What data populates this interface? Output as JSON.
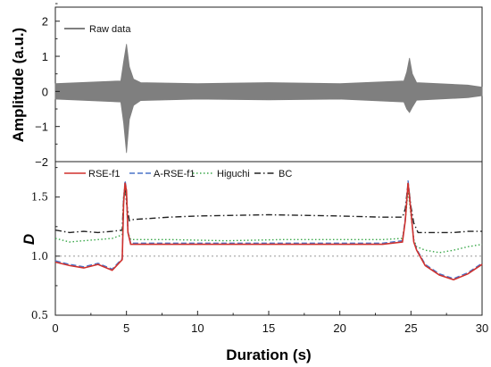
{
  "chart_data": [
    {
      "type": "line",
      "title": "",
      "xlabel": "",
      "ylabel": "Amplitude (a.u.)",
      "xlim": [
        0,
        30
      ],
      "ylim": [
        -2,
        2.4
      ],
      "yticks": [
        "−2",
        "−1",
        "0",
        "1",
        "2"
      ],
      "ytick_values": [
        -2,
        -1,
        0,
        1,
        2
      ],
      "grid": false,
      "legend_position": "top-left",
      "series": [
        {
          "name": "Raw data",
          "color": "#7f7f7f",
          "envelope": {
            "x": [
              0,
              4.6,
              4.8,
              5.0,
              5.2,
              5.5,
              6,
              10,
              15,
              20,
              24.5,
              24.7,
              24.9,
              25.1,
              25.4,
              29,
              30
            ],
            "upper": [
              0.22,
              0.3,
              0.85,
              1.35,
              0.7,
              0.35,
              0.25,
              0.22,
              0.25,
              0.22,
              0.3,
              0.55,
              0.95,
              0.5,
              0.25,
              0.18,
              0.12
            ],
            "lower": [
              -0.22,
              -0.3,
              -0.9,
              -1.75,
              -0.8,
              -0.4,
              -0.26,
              -0.22,
              -0.24,
              -0.22,
              -0.3,
              -0.5,
              -0.6,
              -0.45,
              -0.25,
              -0.18,
              -0.12
            ]
          }
        }
      ]
    },
    {
      "type": "line",
      "title": "",
      "xlabel": "Duration (s)",
      "ylabel": "D",
      "xlim": [
        0,
        30
      ],
      "ylim": [
        0.5,
        1.8
      ],
      "xticks": [
        "0",
        "5",
        "10",
        "15",
        "20",
        "25",
        "30"
      ],
      "xtick_values": [
        0,
        5,
        10,
        15,
        20,
        25,
        30
      ],
      "yticks": [
        "0.5",
        "1.0",
        "1.5"
      ],
      "ytick_values": [
        0.5,
        1.0,
        1.5
      ],
      "reference_line": {
        "y": 1.0,
        "style": "dotted"
      },
      "grid": false,
      "legend_position": "top",
      "series": [
        {
          "name": "RSE-f1",
          "color": "#d0312d",
          "style": "solid",
          "x": [
            0,
            1,
            2,
            3,
            4,
            4.7,
            4.8,
            4.9,
            5.0,
            5.1,
            5.3,
            8,
            12,
            16,
            20,
            23,
            24.4,
            24.6,
            24.8,
            25.0,
            25.2,
            25.4,
            26,
            27,
            28,
            29,
            30
          ],
          "y": [
            0.95,
            0.92,
            0.9,
            0.93,
            0.88,
            0.97,
            1.45,
            1.62,
            1.55,
            1.2,
            1.1,
            1.1,
            1.1,
            1.1,
            1.1,
            1.1,
            1.12,
            1.3,
            1.62,
            1.38,
            1.12,
            1.05,
            0.92,
            0.84,
            0.8,
            0.85,
            0.93
          ]
        },
        {
          "name": "A-RSE-f1",
          "color": "#4a74c9",
          "style": "dashed",
          "x": [
            0,
            1,
            2,
            3,
            4,
            4.7,
            4.8,
            4.9,
            5.0,
            5.1,
            5.3,
            8,
            12,
            16,
            20,
            23,
            24.4,
            24.6,
            24.8,
            25.0,
            25.2,
            25.4,
            26,
            27,
            28,
            29,
            30
          ],
          "y": [
            0.96,
            0.93,
            0.91,
            0.94,
            0.89,
            0.98,
            1.47,
            1.64,
            1.56,
            1.21,
            1.11,
            1.11,
            1.11,
            1.11,
            1.11,
            1.11,
            1.13,
            1.32,
            1.64,
            1.39,
            1.13,
            1.06,
            0.93,
            0.85,
            0.81,
            0.86,
            0.94
          ]
        },
        {
          "name": "Higuchi",
          "color": "#3aa84a",
          "style": "dotted",
          "x": [
            0,
            1,
            2,
            3,
            4,
            4.7,
            4.8,
            4.9,
            5.0,
            5.1,
            5.3,
            8,
            12,
            16,
            20,
            23,
            24.4,
            24.6,
            24.8,
            25.0,
            25.2,
            25.4,
            26,
            27,
            28,
            29,
            30
          ],
          "y": [
            1.15,
            1.12,
            1.13,
            1.14,
            1.15,
            1.18,
            1.5,
            1.6,
            1.5,
            1.2,
            1.14,
            1.14,
            1.13,
            1.14,
            1.14,
            1.14,
            1.15,
            1.3,
            1.56,
            1.35,
            1.14,
            1.08,
            1.05,
            1.03,
            1.05,
            1.08,
            1.1
          ]
        },
        {
          "name": "BC",
          "color": "#222222",
          "style": "dashdot",
          "x": [
            0,
            1,
            2,
            3,
            4,
            4.7,
            4.8,
            4.9,
            5.0,
            5.2,
            5.5,
            8,
            10,
            15,
            20,
            23,
            24.4,
            24.6,
            24.8,
            25.0,
            25.2,
            25.5,
            26,
            27,
            28,
            29,
            30
          ],
          "y": [
            1.22,
            1.2,
            1.21,
            1.2,
            1.21,
            1.22,
            1.5,
            1.6,
            1.45,
            1.3,
            1.31,
            1.33,
            1.34,
            1.35,
            1.34,
            1.33,
            1.33,
            1.4,
            1.62,
            1.42,
            1.28,
            1.2,
            1.2,
            1.2,
            1.2,
            1.21,
            1.21
          ]
        }
      ]
    }
  ]
}
